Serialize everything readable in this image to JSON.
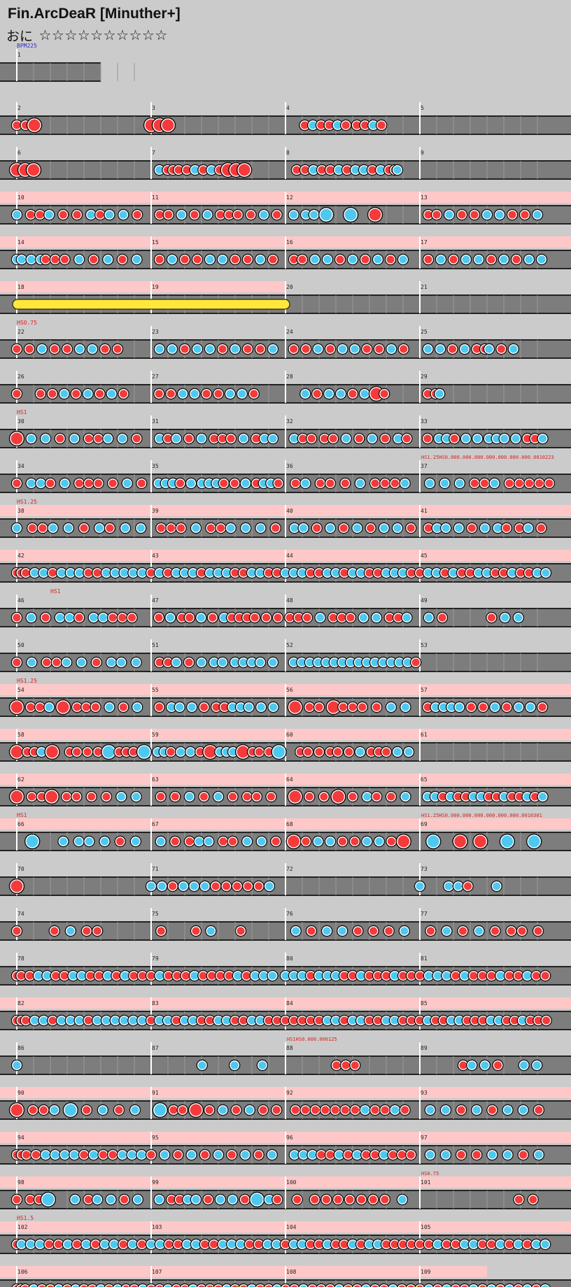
{
  "header": {
    "title": "Fin.ArcDeaR [Minuther+]",
    "difficulty_label": "おに",
    "stars": "☆☆☆☆☆☆☆☆☆☆"
  },
  "colors": {
    "don": "#f43a3a",
    "ka": "#4fc8f0",
    "lane": "#7d7d7d",
    "gogo": "#ffc8c8",
    "drumroll": "#ffe83a",
    "bg": "#cbcbcb"
  },
  "chart_data": {
    "type": "taiko-score",
    "bpm_label": "BPM225",
    "measures_per_row": 4,
    "rows": [
      {
        "start": 1,
        "count": 1,
        "gogo": 0,
        "label": "BPM225",
        "notes": ""
      },
      {
        "start": 2,
        "count": 4,
        "gogo": 0,
        "notes": "d..d..D.......................................|D..D..D.........................................|.......d..k..d..d..k..d...d..d..k..d.............|"
      },
      {
        "start": 6,
        "count": 4,
        "gogo": 0,
        "notes": "D..D..D.........................................|...k..d.d.d..d..k..d..k..d..D..D..D..............|....d..d..k..d..d..k..d..k..k..d..k..d.dk.......|"
      },
      {
        "start": 10,
        "count": 4,
        "gogo": 4,
        "notes": "k..d.d.k..d..d..k.d.k..k..d..|..d.d..k..d..k..d.d.d..d..k..d.|..k..k.k..K.....K.....D..........|..d.d..k..d..d..k..k..d..d..k...|"
      },
      {
        "start": 14,
        "count": 4,
        "gogo": 4,
        "notes": "kk.k.kd.d.d..k..d..k..d..k..|..d..k..d..d..k..k..d..d..k..d..|..d.d..k..k..d..k..d..k..d..k...|..d..k..d..k..k..d..k..d..k..k..|"
      },
      {
        "start": 18,
        "count": 4,
        "gogo": 2,
        "roll": [
          0,
          2
        ],
        "notes": "||||"
      },
      {
        "start": 22,
        "count": 4,
        "gogo": 0,
        "label": "HS0.75",
        "notes": "d..d..k..d..d..k..k..d..d.......|..k..k..d..k..k..d..k..d..d..k..|..d..d..k..d..k..k..d..d..k..d...|..k..k..d..k..d.dk..d..k.........|"
      },
      {
        "start": 26,
        "count": 4,
        "gogo": 0,
        "notes": "d.....d..d..k..d..k..d..k..d......|..d..d..k..k..d..d..k..k..d.......|.....k..d..k..k..d..k..D.d........|..d.dk............................|"
      },
      {
        "start": 30,
        "count": 4,
        "gogo": 0,
        "label": "HS1",
        "notes": "D..k..k..d..k..d.d.k..k..d..|..k.d.k..d..k..d.d.d..k..d.k.k..|..k.d.d..d.d..k..d..k..d..k.d..|..d..k.k.d..k..k..k.k.k..k..d.d.k..|"
      },
      {
        "start": 34,
        "count": 4,
        "gogo": 0,
        "notes": "d..k.k.d..k..d.d.d..d..k..d.|..k.k.k.d..k..k.k.k.d..d..k..d.k.k.d.|..d.k..d.d..d..k..d.d.d.k..|..k..k..k..d.d.k..d.d.d.d.d|"
      },
      {
        "start": 38,
        "count": 4,
        "gogo": 4,
        "label": "HS1.25",
        "notes": "k..d.d.k..k..d..k.d..k..k.|..d.d.d..k..d.d.k..k..k..d.|..k.k..d..k..d..k..d..k..k..d.|..d.k.k..k..d..k..k.d..d.k..d..|"
      },
      {
        "start": 42,
        "count": 4,
        "gogo": 4,
        "notes": "ddd.k.k.d.k.k.k.d.d.k.k.k.k.k.|d.k.d.k.k.k.d.k.k.k.d.d.k.k.d.d.|k.k.k.d.d.k.k.d.k.k.d.d.k.k.k.d.|d.k.k.d.k.d.d.k.k.d.d.k.d.d.k.k.|"
      },
      {
        "start": 46,
        "count": 4,
        "gogo": 0,
        "label2": "HS1",
        "notes": "d..k..d..k.k.d..k.k.d.d.d...|..d..k..d.d..k..d..k.d.d.d.d..d..d.|.d.d.d..k..d.d.d..k..k..d.d.k..|..k..d..........d..k..k.......|"
      },
      {
        "start": 50,
        "count": 4,
        "gogo": 0,
        "notes": "d..k..d.d.k..k..d..k.k..k..|..d.d.k..d..k..k.k..k.k.k.k..k..|..k.k.k.k.k.k.k.k.k.k.k.k.k.k.k.d|.............................|"
      },
      {
        "start": 54,
        "count": 4,
        "gogo": 4,
        "label": "HS1.25",
        "notes": "D..d.d.k..D..d.d.d..k..d..k..|..d..k.k..k..d..d.d.k.k.k..k..k..|..D..d.d..D.d.d.d..d..k..k..|..d.k.k.k.k..d..d..k..d..k..k..d..|"
      },
      {
        "start": 58,
        "count": 4,
        "gogo": 4,
        "notes": "D..d.d.k..D....d.d..d..d..K..d.d.d..K.|..k.k.d..k..k..d..D..k.k.k..D..d.d..d..K.|....d.d..d..d.d..d..k..d.d.d..k..k..|...|"
      },
      {
        "start": 62,
        "count": 4,
        "gogo": 4,
        "notes": "D..d.d.D..d.d..d..d..k..k..|..d..d..k..d..k..d..d.d..d..|..D..d..d..D..d..k.d..d..k..|..k.k.d.k.d.d.k.k.d.d.k.d.d.k.d.k..|"
      },
      {
        "start": 66,
        "count": 4,
        "gogo": 4,
        "label": "HS1",
        "notes": "...K.....k..k.k..k..d..k..|..k..d..d.k.k..d.d..k..k..d.|..D..d..k..k..d..d..k..k..d..D...|..K...D..D...K...K..|"
      },
      {
        "start": 70,
        "count": 4,
        "gogo": 0,
        "notes": "D.............................|k.k.d.k.k.k.d.d.d.d.d.k..|..............................|k.....k.k.d.....k...........|"
      },
      {
        "start": 74,
        "count": 4,
        "gogo": 0,
        "notes": "d......d..k..d.d.........|..d......d..k.....d........|..k..d..k..k..d..d..d..k..|..d..k..d..k..d..d.d..d..|"
      },
      {
        "start": 78,
        "count": 4,
        "gogo": 0,
        "notes": "dd.d.k.k.d.d.k.k.d.d.k.d.k.d.d.|d.k.d.d.d.k.d.d.d.d.k.d.k.k.k..|k.k.k.d.k.k.k.d.d.k.d.d.d.k.d.d.|d.k.k.k.d.k.d.d.d.k.d.d.k.d.d.|"
      },
      {
        "start": 82,
        "count": 4,
        "gogo": 4,
        "notes": "ddd.k.k.d.k.k.k.d.k.k.k.k.k.k.|d.k.k.d.k.k.d.d.k.k.d.d.k.k.d.d.|d.d.d.d.d.k.k.d.k.k.d.d.k.k.d.d.|d.k.d.d.k.k.d.d.d.k.k.d.d.k.d.d.d.|"
      },
      {
        "start": 86,
        "count": 4,
        "gogo": 0,
        "notes": "k...........................|...........k......k.....k....|...........d.d.d.............|..........d.k..k..d.....k..k...|"
      },
      {
        "start": 90,
        "count": 4,
        "gogo": 4,
        "notes": "D..d.d.k..K..d..k..d..k..|..K..d.d..D..d..k..d..k..d..d.|..d.d.d.d.d.d.d.k.d.d.k.d..|..k..k..d..k..d..k..k..d..|"
      },
      {
        "start": 94,
        "count": 4,
        "gogo": 4,
        "notes": "ddd.d.k.k.k.k.d.k.d.d.k.k.k.|d..k..d..k..d..k..d..k..d..k..|..k.k.k.d.d.k.d.k.d.d.k.d.d.d.|..k..k..d..d..k..k..d..k..|"
      },
      {
        "start": 98,
        "count": 4,
        "gogo": 4,
        "notes": "d..d.d.K.....k..d.k..k..d..k..|..k..d.d.k.k..d..k..k..d..K..k.d.|..d..d.d.d.d.d.d.d..k..|..............d.d..|"
      },
      {
        "start": 102,
        "count": 4,
        "gogo": 4,
        "label": "HS1.5",
        "notes": "dk.k.k.d.d.k.d.k.d.k.k.d.k.d.|k.k.d.d.k.k.d.d.k.k.k.d.d.k.k.|d.k.k.d.d.k.d.d.k.d.k.k.d.d.d.d.|d.d.k.d.d.k.k.d.d.k.d.k.d.k.k.|"
      },
      {
        "start": 106,
        "count": 4,
        "gogo": 3.5,
        "notes": "ddd.k.d.d.k.d.k.d.d.k.d.k.d.d.k.|d.d.k.d.d.k.d.d.d.k.d.d.k.d.d.k.|d.d.k.d.d.d.k.d.d.k.d.d.k.d.d.|d.k.d.k.d.d.k.d.k.d.k.d.k.d.k.|"
      }
    ],
    "extra_labels": [
      {
        "measure": 37,
        "text": "HS1.25HS0.000.000.000.000.000.000.000.0010223"
      },
      {
        "measure": 69,
        "text": "HS1.25HS0.000.000.000.000.000.000.0010301"
      },
      {
        "measure": 88,
        "text": "HS1HS0.000.000125"
      },
      {
        "measure": 101,
        "text": "HS0.75"
      }
    ]
  }
}
